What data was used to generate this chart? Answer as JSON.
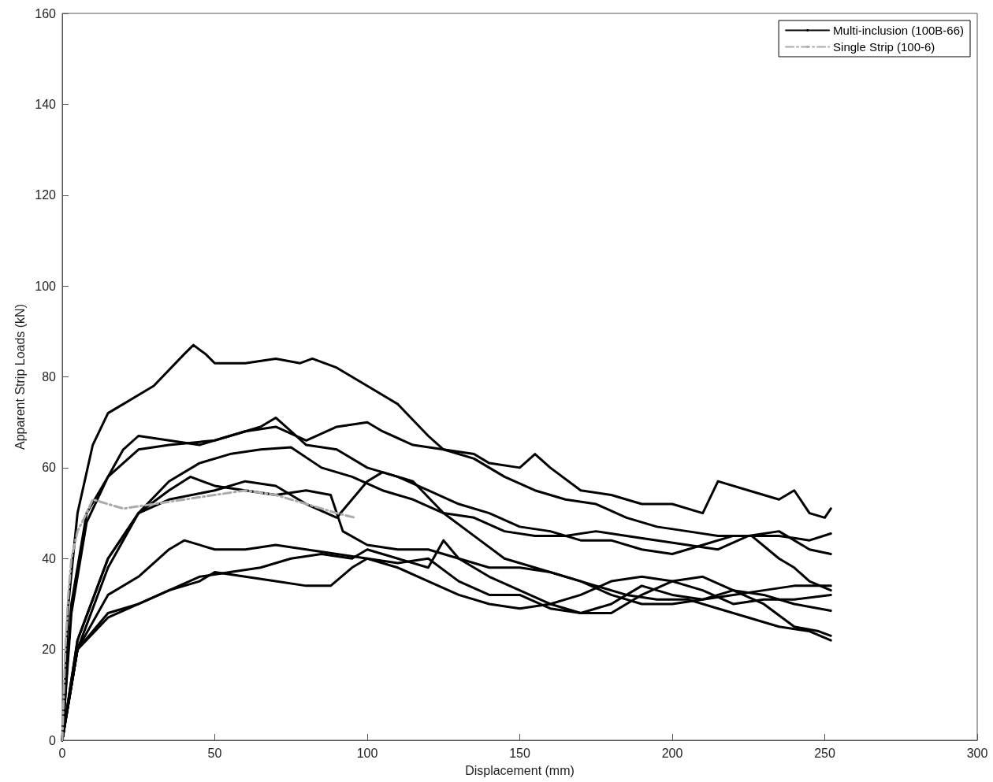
{
  "chart_data": {
    "type": "line",
    "xlabel": "Displacement (mm)",
    "ylabel": "Apparent Strip Loads (kN)",
    "xlim": [
      0,
      300
    ],
    "xticks": [
      0,
      50,
      100,
      150,
      200,
      250,
      300
    ],
    "ylim": [
      0,
      160
    ],
    "yticks": [
      0,
      20,
      40,
      60,
      80,
      100,
      120,
      140,
      160
    ],
    "grid": false,
    "legend": "top right",
    "marker": "none",
    "series": [
      {
        "name": "Multi-inclusion (100B-66)",
        "color": "#000000",
        "line_style": "solid",
        "x": [
          0,
          2,
          5,
          10,
          15,
          20,
          30,
          40,
          43,
          47,
          50,
          60,
          70,
          78,
          82,
          90,
          100,
          110,
          120,
          125,
          135,
          140,
          150,
          155,
          160,
          170,
          180,
          190,
          200,
          210,
          215,
          225,
          235,
          240,
          245,
          250,
          252
        ],
        "values": [
          0,
          30,
          50,
          65,
          72,
          74,
          78,
          85,
          87,
          85,
          83,
          83,
          84,
          83,
          84,
          82,
          78,
          74,
          67,
          64,
          63,
          61,
          60,
          63,
          60,
          55,
          54,
          52,
          52,
          50,
          57,
          55,
          53,
          55,
          50,
          49,
          51
        ]
      },
      {
        "color": "#000000",
        "line_style": "solid",
        "x": [
          0,
          3,
          8,
          15,
          20,
          25,
          35,
          45,
          55,
          65,
          70,
          75,
          80,
          90,
          100,
          110,
          120,
          130,
          140,
          150,
          160,
          170,
          180,
          190,
          200,
          210,
          220,
          226,
          235,
          240,
          245,
          252
        ],
        "values": [
          0,
          30,
          50,
          58,
          64,
          67,
          66,
          65,
          67,
          69,
          71,
          68,
          65,
          64,
          60,
          58,
          55,
          52,
          50,
          47,
          46,
          44,
          44,
          42,
          41,
          43,
          45,
          45,
          40,
          38,
          35,
          33
        ]
      },
      {
        "color": "#000000",
        "line_style": "solid",
        "x": [
          0,
          3,
          8,
          15,
          25,
          35,
          50,
          60,
          70,
          80,
          90,
          100,
          105,
          115,
          125,
          135,
          145,
          155,
          165,
          175,
          185,
          195,
          205,
          215,
          225,
          235,
          245,
          252
        ],
        "values": [
          0,
          28,
          48,
          58,
          64,
          65,
          66,
          68,
          69,
          66,
          69,
          70,
          68,
          65,
          64,
          62,
          58,
          55,
          53,
          52,
          49,
          47,
          46,
          45,
          45,
          45,
          44,
          45.5
        ]
      },
      {
        "color": "#000000",
        "line_style": "solid",
        "x": [
          0,
          5,
          15,
          25,
          35,
          45,
          55,
          65,
          75,
          85,
          95,
          105,
          115,
          125,
          135,
          145,
          155,
          165,
          175,
          185,
          195,
          205,
          215,
          225,
          235,
          245,
          252
        ],
        "values": [
          0,
          20,
          38,
          50,
          57,
          61,
          63,
          64,
          64.5,
          60,
          58,
          55,
          53,
          50,
          49,
          46,
          45,
          45,
          46,
          45,
          44,
          43,
          42,
          45,
          46,
          42,
          41
        ]
      },
      {
        "color": "#000000",
        "line_style": "solid",
        "x": [
          0,
          5,
          15,
          25,
          35,
          42,
          50,
          60,
          70,
          80,
          88,
          92,
          100,
          110,
          120,
          130,
          140,
          150,
          160,
          170,
          180,
          190,
          200,
          210,
          220,
          230,
          240,
          252
        ],
        "values": [
          0,
          22,
          40,
          50,
          55,
          58,
          56,
          55,
          54,
          55,
          54,
          46,
          43,
          42,
          42,
          40,
          38,
          38,
          37,
          35,
          32,
          30,
          30,
          31,
          33,
          32,
          30,
          28.5
        ]
      },
      {
        "color": "#000000",
        "line_style": "solid",
        "x": [
          0,
          5,
          15,
          25,
          35,
          50,
          60,
          70,
          80,
          90,
          95,
          100,
          105,
          115,
          125,
          135,
          145,
          155,
          165,
          175,
          185,
          195,
          205,
          215,
          225,
          235,
          245,
          252
        ],
        "values": [
          0,
          22,
          40,
          50,
          53,
          55,
          57,
          56,
          52,
          49,
          53,
          57,
          59,
          57,
          50,
          45,
          40,
          38,
          36,
          34,
          32,
          31,
          31,
          29,
          27,
          25,
          24,
          22
        ]
      },
      {
        "color": "#000000",
        "line_style": "solid",
        "x": [
          0,
          5,
          15,
          25,
          35,
          40,
          50,
          60,
          70,
          80,
          90,
          100,
          110,
          120,
          130,
          140,
          150,
          160,
          170,
          180,
          190,
          200,
          210,
          220,
          230,
          240,
          252
        ],
        "values": [
          0,
          20,
          32,
          36,
          42,
          44,
          42,
          42,
          43,
          42,
          41,
          40,
          38,
          35,
          32,
          30,
          29,
          30,
          32,
          35,
          36,
          35,
          33,
          30,
          31,
          31,
          32
        ]
      },
      {
        "color": "#000000",
        "line_style": "solid",
        "x": [
          0,
          5,
          15,
          25,
          35,
          45,
          55,
          65,
          75,
          85,
          95,
          100,
          110,
          120,
          125,
          130,
          140,
          150,
          160,
          170,
          180,
          190,
          200,
          210,
          220,
          230,
          240,
          248,
          252
        ],
        "values": [
          0,
          20,
          27,
          30,
          33,
          36,
          37,
          38,
          40,
          41,
          40,
          42,
          40,
          38,
          44,
          40,
          36,
          33,
          30,
          28,
          28,
          32,
          35,
          36,
          33,
          30,
          25,
          24,
          23
        ]
      },
      {
        "color": "#000000",
        "line_style": "solid",
        "x": [
          0,
          5,
          15,
          25,
          35,
          45,
          50,
          60,
          70,
          80,
          88,
          95,
          100,
          110,
          120,
          130,
          140,
          150,
          160,
          170,
          180,
          190,
          200,
          210,
          220,
          230,
          240,
          252
        ],
        "values": [
          0,
          20,
          28,
          30,
          33,
          35,
          37,
          36,
          35,
          34,
          34,
          38,
          40,
          39,
          40,
          35,
          32,
          32,
          29,
          28,
          30,
          34,
          32,
          31,
          32,
          33,
          34,
          34
        ]
      },
      {
        "name": "Single Strip (100-6)",
        "color": "#aaaaaa",
        "line_style": "dashdot",
        "x": [
          0,
          1,
          2,
          3,
          5,
          8,
          10,
          15,
          20,
          30,
          40,
          50,
          60,
          70,
          80,
          90,
          96
        ],
        "values": [
          0,
          20,
          32,
          40,
          46,
          50,
          53,
          52,
          51,
          52,
          53,
          54,
          55,
          54,
          52,
          50,
          49
        ]
      }
    ]
  }
}
